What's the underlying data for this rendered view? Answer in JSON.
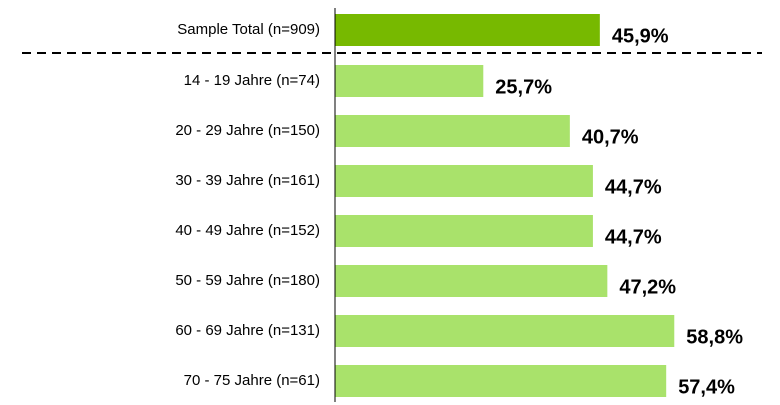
{
  "chart_data": {
    "type": "bar",
    "orientation": "horizontal",
    "categories": [
      "Sample Total (n=909)",
      "14 - 19 Jahre (n=74)",
      "20 - 29 Jahre (n=150)",
      "30 - 39 Jahre (n=161)",
      "40 - 49 Jahre (n=152)",
      "50 - 59 Jahre (n=180)",
      "60 - 69 Jahre (n=131)",
      "70 - 75 Jahre (n=61)"
    ],
    "values": [
      45.9,
      25.7,
      40.7,
      44.7,
      44.7,
      47.2,
      58.8,
      57.4
    ],
    "value_labels": [
      "45,9%",
      "25,7%",
      "40,7%",
      "44,7%",
      "44,7%",
      "47,2%",
      "58,8%",
      "57,4%"
    ],
    "colors": [
      "#77b900",
      "#a9e26b",
      "#a9e26b",
      "#a9e26b",
      "#a9e26b",
      "#a9e26b",
      "#a9e26b",
      "#a9e26b"
    ]
  }
}
